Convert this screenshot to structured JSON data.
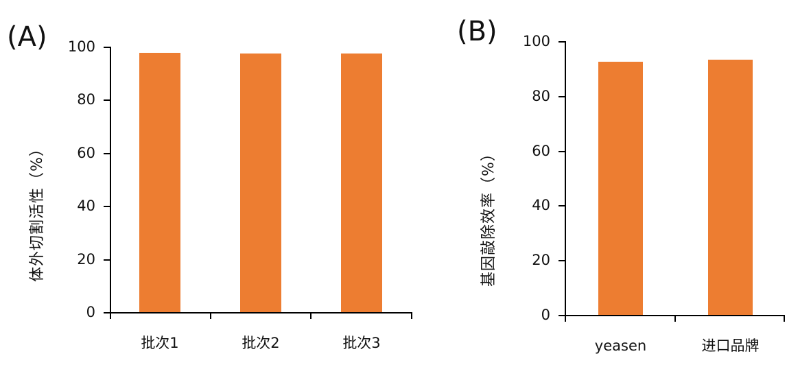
{
  "colors": {
    "bar": "#ED7D31",
    "axis": "#000000"
  },
  "chart_data": [
    {
      "panel": "(A)",
      "type": "bar",
      "title": "",
      "xlabel": "",
      "ylabel": "体外切割活性（%）",
      "ylim": [
        0,
        100
      ],
      "yticks": [
        "0",
        "20",
        "40",
        "60",
        "80",
        "100"
      ],
      "categories": [
        "批次1",
        "批次2",
        "批次3"
      ],
      "values": [
        98.0,
        97.6,
        97.6
      ],
      "grid": false,
      "legend": null
    },
    {
      "panel": "(B)",
      "type": "bar",
      "title": "",
      "xlabel": "",
      "ylabel": "基因敲除效率（%）",
      "ylim": [
        0,
        100
      ],
      "yticks": [
        "0",
        "20",
        "40",
        "60",
        "80",
        "100"
      ],
      "categories": [
        "yeasen",
        "进口品牌"
      ],
      "values": [
        92.7,
        93.5
      ],
      "grid": false,
      "legend": null
    }
  ]
}
